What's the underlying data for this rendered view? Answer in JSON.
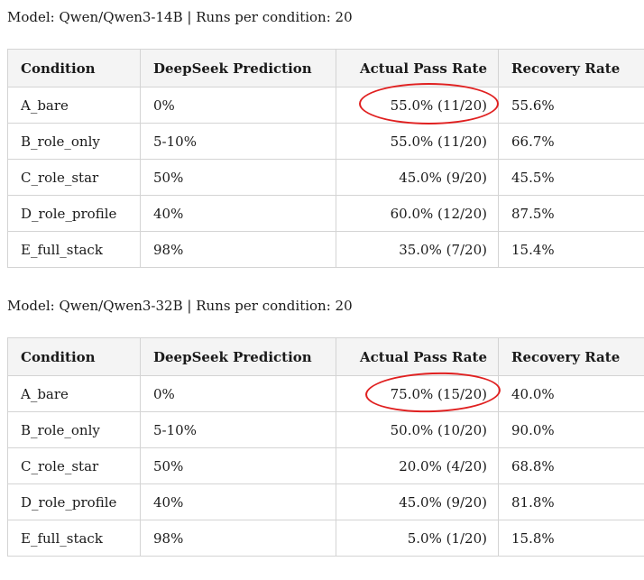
{
  "tables": [
    {
      "caption": "Model: Qwen/Qwen3-14B | Runs per condition: 20",
      "headers": [
        "Condition",
        "DeepSeek Prediction",
        "Actual Pass Rate",
        "Recovery Rate"
      ],
      "rows": [
        [
          "A_bare",
          "0%",
          "55.0% (11/20)",
          "55.6%"
        ],
        [
          "B_role_only",
          "5-10%",
          "55.0% (11/20)",
          "66.7%"
        ],
        [
          "C_role_star",
          "50%",
          "45.0% (9/20)",
          "45.5%"
        ],
        [
          "D_role_profile",
          "40%",
          "60.0% (12/20)",
          "87.5%"
        ],
        [
          "E_full_stack",
          "98%",
          "35.0% (7/20)",
          "15.4%"
        ]
      ]
    },
    {
      "caption": "Model: Qwen/Qwen3-32B | Runs per condition: 20",
      "headers": [
        "Condition",
        "DeepSeek Prediction",
        "Actual Pass Rate",
        "Recovery Rate"
      ],
      "rows": [
        [
          "A_bare",
          "0%",
          "75.0% (15/20)",
          "40.0%"
        ],
        [
          "B_role_only",
          "5-10%",
          "50.0% (10/20)",
          "90.0%"
        ],
        [
          "C_role_star",
          "50%",
          "20.0% (4/20)",
          "68.8%"
        ],
        [
          "D_role_profile",
          "40%",
          "45.0% (9/20)",
          "81.8%"
        ],
        [
          "E_full_stack",
          "98%",
          "5.0% (1/20)",
          "15.8%"
        ]
      ]
    }
  ],
  "annotation_color": "#e02020"
}
